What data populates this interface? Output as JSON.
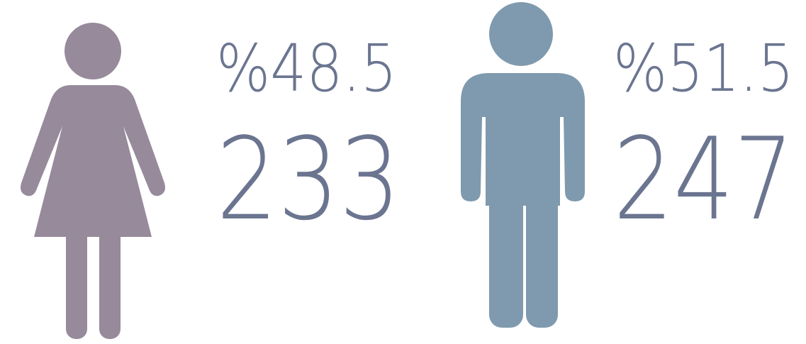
{
  "items": [
    {
      "percent": "%48.5",
      "count": "233"
    },
    {
      "percent": "%51.5",
      "count": "247"
    }
  ]
}
